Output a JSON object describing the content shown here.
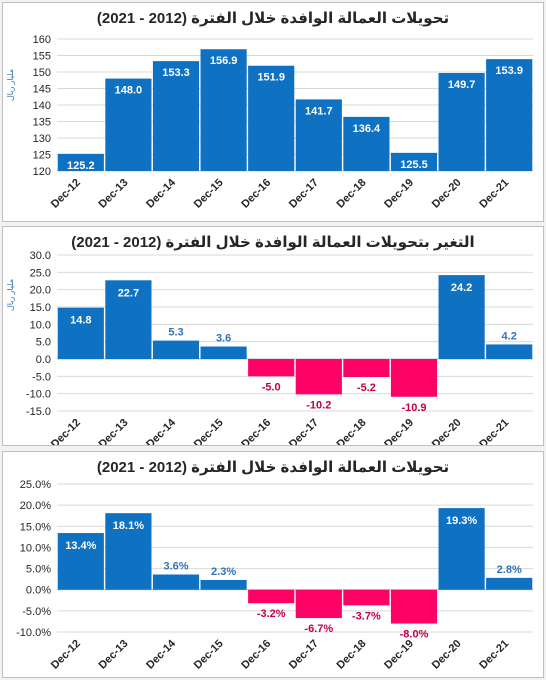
{
  "colors": {
    "positive": "#0f71c2",
    "negative": "#ff0266",
    "grid": "#d9d9d9",
    "axis_text": "#595959"
  },
  "chart_data": [
    {
      "type": "bar",
      "title": "تحويلات العمالة الوافدة خلال الفترة (2012 - 2021)",
      "ylabel": "مليار ريال",
      "categories": [
        "Dec-12",
        "Dec-13",
        "Dec-14",
        "Dec-15",
        "Dec-16",
        "Dec-17",
        "Dec-18",
        "Dec-19",
        "Dec-20",
        "Dec-21"
      ],
      "values": [
        125.2,
        148.0,
        153.3,
        156.9,
        151.9,
        141.7,
        136.4,
        125.5,
        149.7,
        153.9
      ],
      "value_labels": [
        "125.2",
        "148.0",
        "153.3",
        "156.9",
        "151.9",
        "141.7",
        "136.4",
        "125.5",
        "149.7",
        "153.9"
      ],
      "ylim": [
        120,
        160
      ],
      "yticks": [
        "160",
        "155",
        "150",
        "145",
        "140",
        "135",
        "130",
        "125",
        "120"
      ],
      "ytick_values": [
        160,
        155,
        150,
        145,
        140,
        135,
        130,
        125,
        120
      ],
      "grid": true,
      "label_position": "inside"
    },
    {
      "type": "bar",
      "title": "التغير بتحويلات العمالة الوافدة خلال الفترة (2012 - 2021)",
      "ylabel": "مليار ريال",
      "categories": [
        "Dec-12",
        "Dec-13",
        "Dec-14",
        "Dec-15",
        "Dec-16",
        "Dec-17",
        "Dec-18",
        "Dec-19",
        "Dec-20",
        "Dec-21"
      ],
      "values": [
        14.8,
        22.7,
        5.3,
        3.6,
        -5.0,
        -10.2,
        -5.2,
        -10.9,
        24.2,
        4.2
      ],
      "value_labels": [
        "14.8",
        "22.7",
        "5.3",
        "3.6",
        "-5.0",
        "-10.2",
        "-5.2",
        "-10.9",
        "24.2",
        "4.2"
      ],
      "ylim": [
        -15,
        30
      ],
      "yticks": [
        "30.0",
        "25.0",
        "20.0",
        "15.0",
        "10.0",
        "5.0",
        "0.0",
        "-5.0",
        "-10.0",
        "-15.0"
      ],
      "ytick_values": [
        30,
        25,
        20,
        15,
        10,
        5,
        0,
        -5,
        -10,
        -15
      ],
      "grid": true,
      "label_position": "outside"
    },
    {
      "type": "bar",
      "title": "تحويلات العمالة الوافدة خلال الفترة (2012 - 2021)",
      "ylabel": "",
      "categories": [
        "Dec-12",
        "Dec-13",
        "Dec-14",
        "Dec-15",
        "Dec-16",
        "Dec-17",
        "Dec-18",
        "Dec-19",
        "Dec-20",
        "Dec-21"
      ],
      "values": [
        13.4,
        18.1,
        3.6,
        2.3,
        -3.2,
        -6.7,
        -3.7,
        -8.0,
        19.3,
        2.8
      ],
      "value_labels": [
        "13.4%",
        "18.1%",
        "3.6%",
        "2.3%",
        "-3.2%",
        "-6.7%",
        "-3.7%",
        "-8.0%",
        "19.3%",
        "2.8%"
      ],
      "ylim": [
        -10,
        25
      ],
      "yticks": [
        "25.0%",
        "20.0%",
        "15.0%",
        "10.0%",
        "5.0%",
        "0.0%",
        "-5.0%",
        "-10.0%"
      ],
      "ytick_values": [
        25,
        20,
        15,
        10,
        5,
        0,
        -5,
        -10
      ],
      "grid": true,
      "label_position": "outside"
    }
  ]
}
